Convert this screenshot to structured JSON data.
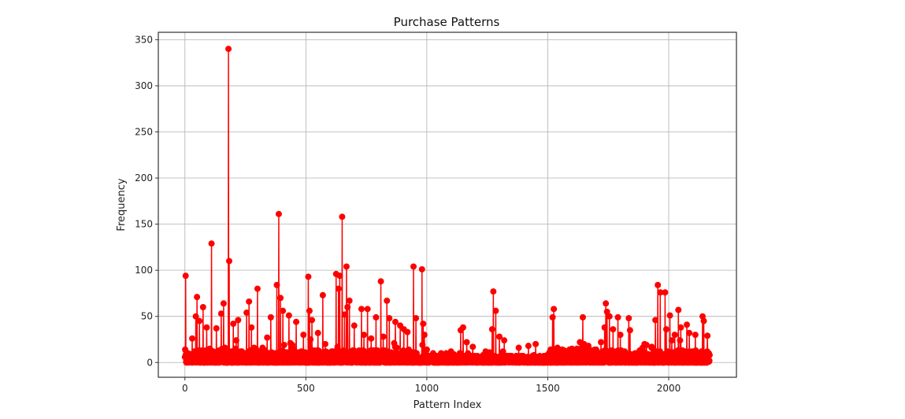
{
  "chart_data": {
    "type": "line",
    "title": "Purchase Patterns",
    "xlabel": "Pattern Index",
    "ylabel": "Frequency",
    "xlim": [
      -110,
      2280
    ],
    "ylim": [
      -16,
      358
    ],
    "x_ticks": [
      0,
      500,
      1000,
      1500,
      2000
    ],
    "y_ticks": [
      0,
      50,
      100,
      150,
      200,
      250,
      300,
      350
    ],
    "grid": true,
    "legend": null,
    "line_color": "#ff0000",
    "marker": "circle",
    "n_points": 2170,
    "series": [
      {
        "name": "Frequency",
        "notable_points": [
          {
            "x": 3,
            "y": 94
          },
          {
            "x": 30,
            "y": 26
          },
          {
            "x": 45,
            "y": 50
          },
          {
            "x": 50,
            "y": 71
          },
          {
            "x": 60,
            "y": 45
          },
          {
            "x": 75,
            "y": 60
          },
          {
            "x": 90,
            "y": 38
          },
          {
            "x": 110,
            "y": 129
          },
          {
            "x": 130,
            "y": 37
          },
          {
            "x": 150,
            "y": 53
          },
          {
            "x": 160,
            "y": 64
          },
          {
            "x": 180,
            "y": 340
          },
          {
            "x": 183,
            "y": 110
          },
          {
            "x": 200,
            "y": 42
          },
          {
            "x": 220,
            "y": 46
          },
          {
            "x": 255,
            "y": 54
          },
          {
            "x": 265,
            "y": 66
          },
          {
            "x": 275,
            "y": 38
          },
          {
            "x": 300,
            "y": 80
          },
          {
            "x": 340,
            "y": 27
          },
          {
            "x": 355,
            "y": 49
          },
          {
            "x": 380,
            "y": 84
          },
          {
            "x": 388,
            "y": 161
          },
          {
            "x": 395,
            "y": 70
          },
          {
            "x": 405,
            "y": 56
          },
          {
            "x": 430,
            "y": 51
          },
          {
            "x": 460,
            "y": 44
          },
          {
            "x": 490,
            "y": 30
          },
          {
            "x": 510,
            "y": 93
          },
          {
            "x": 515,
            "y": 56
          },
          {
            "x": 525,
            "y": 46
          },
          {
            "x": 550,
            "y": 32
          },
          {
            "x": 570,
            "y": 73
          },
          {
            "x": 580,
            "y": 20
          },
          {
            "x": 625,
            "y": 96
          },
          {
            "x": 635,
            "y": 80
          },
          {
            "x": 640,
            "y": 94
          },
          {
            "x": 650,
            "y": 158
          },
          {
            "x": 660,
            "y": 52
          },
          {
            "x": 668,
            "y": 104
          },
          {
            "x": 672,
            "y": 60
          },
          {
            "x": 680,
            "y": 67
          },
          {
            "x": 700,
            "y": 40
          },
          {
            "x": 730,
            "y": 58
          },
          {
            "x": 740,
            "y": 30
          },
          {
            "x": 755,
            "y": 58
          },
          {
            "x": 770,
            "y": 26
          },
          {
            "x": 790,
            "y": 49
          },
          {
            "x": 810,
            "y": 88
          },
          {
            "x": 820,
            "y": 28
          },
          {
            "x": 835,
            "y": 67
          },
          {
            "x": 845,
            "y": 48
          },
          {
            "x": 870,
            "y": 44
          },
          {
            "x": 890,
            "y": 40
          },
          {
            "x": 905,
            "y": 36
          },
          {
            "x": 920,
            "y": 33
          },
          {
            "x": 945,
            "y": 104
          },
          {
            "x": 955,
            "y": 48
          },
          {
            "x": 980,
            "y": 101
          },
          {
            "x": 985,
            "y": 42
          },
          {
            "x": 990,
            "y": 30
          },
          {
            "x": 1000,
            "y": 14
          },
          {
            "x": 1080,
            "y": 10
          },
          {
            "x": 1140,
            "y": 35
          },
          {
            "x": 1150,
            "y": 38
          },
          {
            "x": 1165,
            "y": 22
          },
          {
            "x": 1190,
            "y": 17
          },
          {
            "x": 1270,
            "y": 36
          },
          {
            "x": 1275,
            "y": 77
          },
          {
            "x": 1285,
            "y": 56
          },
          {
            "x": 1300,
            "y": 28
          },
          {
            "x": 1320,
            "y": 24
          },
          {
            "x": 1380,
            "y": 16
          },
          {
            "x": 1420,
            "y": 18
          },
          {
            "x": 1450,
            "y": 20
          },
          {
            "x": 1520,
            "y": 49
          },
          {
            "x": 1525,
            "y": 58
          },
          {
            "x": 1540,
            "y": 16
          },
          {
            "x": 1600,
            "y": 15
          },
          {
            "x": 1645,
            "y": 49
          },
          {
            "x": 1650,
            "y": 20
          },
          {
            "x": 1700,
            "y": 14
          },
          {
            "x": 1735,
            "y": 38
          },
          {
            "x": 1740,
            "y": 64
          },
          {
            "x": 1745,
            "y": 55
          },
          {
            "x": 1755,
            "y": 50
          },
          {
            "x": 1770,
            "y": 36
          },
          {
            "x": 1790,
            "y": 49
          },
          {
            "x": 1800,
            "y": 30
          },
          {
            "x": 1835,
            "y": 48
          },
          {
            "x": 1840,
            "y": 35
          },
          {
            "x": 1900,
            "y": 20
          },
          {
            "x": 1945,
            "y": 46
          },
          {
            "x": 1955,
            "y": 84
          },
          {
            "x": 1965,
            "y": 76
          },
          {
            "x": 1985,
            "y": 76
          },
          {
            "x": 1990,
            "y": 36
          },
          {
            "x": 2005,
            "y": 51
          },
          {
            "x": 2025,
            "y": 30
          },
          {
            "x": 2040,
            "y": 57
          },
          {
            "x": 2050,
            "y": 38
          },
          {
            "x": 2075,
            "y": 41
          },
          {
            "x": 2085,
            "y": 32
          },
          {
            "x": 2110,
            "y": 30
          },
          {
            "x": 2140,
            "y": 50
          },
          {
            "x": 2145,
            "y": 45
          },
          {
            "x": 2160,
            "y": 29
          },
          {
            "x": 2170,
            "y": 2
          }
        ],
        "baseline_note": "remaining points mostly between 0 and ~20"
      }
    ]
  }
}
